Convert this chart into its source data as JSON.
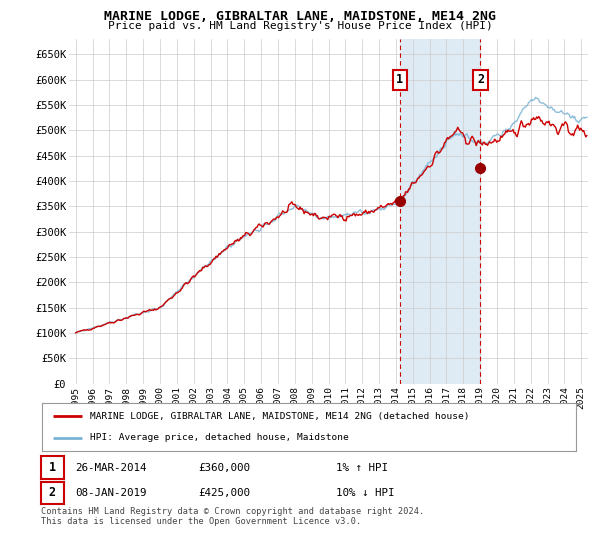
{
  "title": "MARINE LODGE, GIBRALTAR LANE, MAIDSTONE, ME14 2NG",
  "subtitle": "Price paid vs. HM Land Registry's House Price Index (HPI)",
  "ylabel_ticks": [
    "£0",
    "£50K",
    "£100K",
    "£150K",
    "£200K",
    "£250K",
    "£300K",
    "£350K",
    "£400K",
    "£450K",
    "£500K",
    "£550K",
    "£600K",
    "£650K"
  ],
  "ylim": [
    0,
    680000
  ],
  "xlim_start": 1994.6,
  "xlim_end": 2025.4,
  "event1_x": 2014.23,
  "event1_y": 360000,
  "event2_x": 2019.02,
  "event2_y": 425000,
  "shade_x1": 2014.23,
  "shade_x2": 2019.02,
  "legend_line1": "MARINE LODGE, GIBRALTAR LANE, MAIDSTONE, ME14 2NG (detached house)",
  "legend_line2": "HPI: Average price, detached house, Maidstone",
  "table_row1_date": "26-MAR-2014",
  "table_row1_price": "£360,000",
  "table_row1_hpi": "1% ↑ HPI",
  "table_row2_date": "08-JAN-2019",
  "table_row2_price": "£425,000",
  "table_row2_hpi": "10% ↓ HPI",
  "footer": "Contains HM Land Registry data © Crown copyright and database right 2024.\nThis data is licensed under the Open Government Licence v3.0.",
  "hpi_color": "#7ab3d4",
  "price_color": "#cc0000",
  "dot_color": "#990000",
  "shade_color": "#deeaf4",
  "grid_color": "#cccccc",
  "bg_color": "#ffffff"
}
